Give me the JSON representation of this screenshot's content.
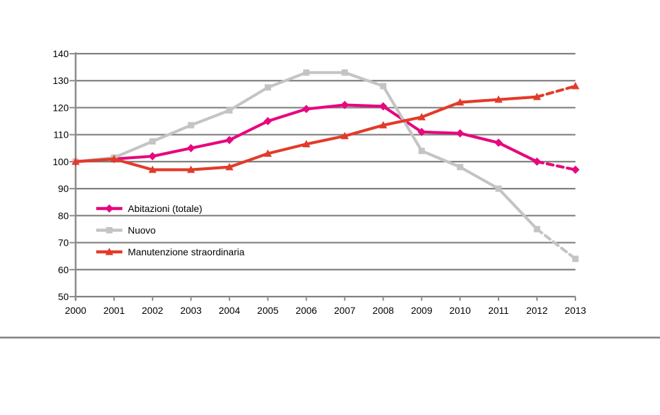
{
  "page": {
    "background": "#ffffff"
  },
  "chart_data": {
    "type": "line",
    "title": "",
    "xlabel": "",
    "ylabel": "",
    "x": [
      2000,
      2001,
      2002,
      2003,
      2004,
      2005,
      2006,
      2007,
      2008,
      2009,
      2010,
      2011,
      2012,
      2013
    ],
    "ylim": [
      50,
      140
    ],
    "ytick_step": 10,
    "yticks": [
      50,
      60,
      70,
      80,
      90,
      100,
      110,
      120,
      130,
      140
    ],
    "grid": "horizontal-on",
    "legend_position": "inside-left-middle",
    "dashed_last_segment": true,
    "series": [
      {
        "name": "Abitazioni (totale)",
        "marker": "diamond",
        "color": "#e7077e",
        "values": [
          100,
          101,
          102,
          105,
          108,
          115,
          119.5,
          121,
          120.5,
          111,
          110.5,
          107,
          100,
          97
        ],
        "dashed_from_index": 12
      },
      {
        "name": "Nuovo",
        "marker": "square",
        "color": "#c4c4c4",
        "values": [
          100,
          101.5,
          107.5,
          113.5,
          119,
          127.5,
          133,
          133,
          128,
          104,
          98,
          90,
          75,
          64
        ],
        "dashed_from_index": 12
      },
      {
        "name": "Manutenzione straordinaria",
        "marker": "triangle",
        "color": "#e23b2a",
        "values": [
          100,
          101,
          97,
          97,
          98,
          103,
          106.5,
          109.5,
          113.5,
          116.5,
          122,
          123,
          124,
          128
        ],
        "dashed_from_index": 12
      }
    ],
    "colors": {
      "gridline": "#7f7f7f",
      "axis": "#8c8c8c",
      "tick_text": "#000000",
      "separator_line": "#7f7f7f"
    }
  }
}
